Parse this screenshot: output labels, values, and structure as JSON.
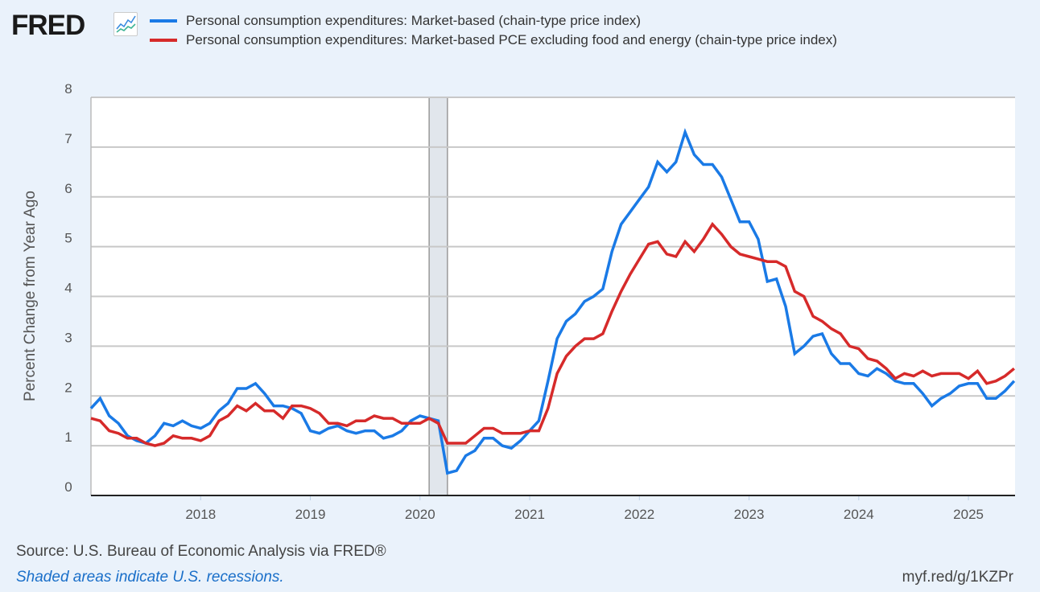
{
  "header": {
    "logo": "FRED",
    "logo_icon": "line-chart-icon"
  },
  "footer": {
    "source": "Source: U.S. Bureau of Economic Analysis via FRED®",
    "note": "Shaded areas indicate U.S. recessions.",
    "url": "myf.red/g/1KZPr"
  },
  "chart_data": {
    "type": "line",
    "title": "",
    "xlabel": "",
    "ylabel": "Percent Change from Year Ago",
    "ylim": [
      0,
      8
    ],
    "yticks": [
      "0",
      "1",
      "2",
      "3",
      "4",
      "5",
      "6",
      "7",
      "8"
    ],
    "xticks": [
      "2018",
      "2019",
      "2020",
      "2021",
      "2022",
      "2023",
      "2024",
      "2025"
    ],
    "x_start": "2017-01",
    "x_end": "2025-06",
    "frequency": "monthly",
    "grid": true,
    "legend_position": "top",
    "recessions": [
      {
        "start": "2020-02",
        "end": "2020-04"
      }
    ],
    "series": [
      {
        "name": "Personal consumption expenditures: Market-based (chain-type price index)",
        "color": "#1a7ae6",
        "values": [
          1.75,
          1.95,
          1.6,
          1.45,
          1.2,
          1.1,
          1.05,
          1.2,
          1.45,
          1.4,
          1.5,
          1.4,
          1.35,
          1.45,
          1.7,
          1.85,
          2.15,
          2.15,
          2.25,
          2.05,
          1.8,
          1.8,
          1.75,
          1.65,
          1.3,
          1.25,
          1.35,
          1.4,
          1.3,
          1.25,
          1.3,
          1.3,
          1.15,
          1.2,
          1.3,
          1.5,
          1.6,
          1.55,
          1.5,
          0.45,
          0.5,
          0.8,
          0.9,
          1.15,
          1.15,
          1.0,
          0.95,
          1.1,
          1.3,
          1.5,
          2.3,
          3.15,
          3.5,
          3.65,
          3.9,
          4.0,
          4.15,
          4.9,
          5.45,
          5.7,
          5.95,
          6.2,
          6.7,
          6.5,
          6.7,
          7.3,
          6.85,
          6.65,
          6.65,
          6.4,
          5.95,
          5.5,
          5.5,
          5.15,
          4.3,
          4.35,
          3.8,
          2.85,
          3.0,
          3.2,
          3.25,
          2.85,
          2.65,
          2.65,
          2.45,
          2.4,
          2.55,
          2.45,
          2.3,
          2.25,
          2.25,
          2.05,
          1.8,
          1.95,
          2.05,
          2.2,
          2.25,
          2.25,
          1.95,
          1.95,
          2.1,
          2.3
        ]
      },
      {
        "name": "Personal consumption expenditures: Market-based PCE excluding food and energy (chain-type price index)",
        "color": "#d62a2a",
        "values": [
          1.55,
          1.5,
          1.3,
          1.25,
          1.15,
          1.15,
          1.05,
          1.0,
          1.05,
          1.2,
          1.15,
          1.15,
          1.1,
          1.2,
          1.5,
          1.6,
          1.8,
          1.7,
          1.85,
          1.7,
          1.7,
          1.55,
          1.8,
          1.8,
          1.75,
          1.65,
          1.45,
          1.45,
          1.4,
          1.5,
          1.5,
          1.6,
          1.55,
          1.55,
          1.45,
          1.45,
          1.45,
          1.55,
          1.45,
          1.05,
          1.05,
          1.05,
          1.2,
          1.35,
          1.35,
          1.25,
          1.25,
          1.25,
          1.3,
          1.3,
          1.75,
          2.45,
          2.8,
          3.0,
          3.15,
          3.15,
          3.25,
          3.7,
          4.1,
          4.45,
          4.75,
          5.05,
          5.1,
          4.85,
          4.8,
          5.1,
          4.9,
          5.15,
          5.45,
          5.25,
          5.0,
          4.85,
          4.8,
          4.75,
          4.7,
          4.7,
          4.6,
          4.1,
          4.0,
          3.6,
          3.5,
          3.35,
          3.25,
          3.0,
          2.95,
          2.75,
          2.7,
          2.55,
          2.35,
          2.45,
          2.4,
          2.5,
          2.4,
          2.45,
          2.45,
          2.45,
          2.35,
          2.5,
          2.25,
          2.3,
          2.4,
          2.55
        ]
      }
    ]
  }
}
